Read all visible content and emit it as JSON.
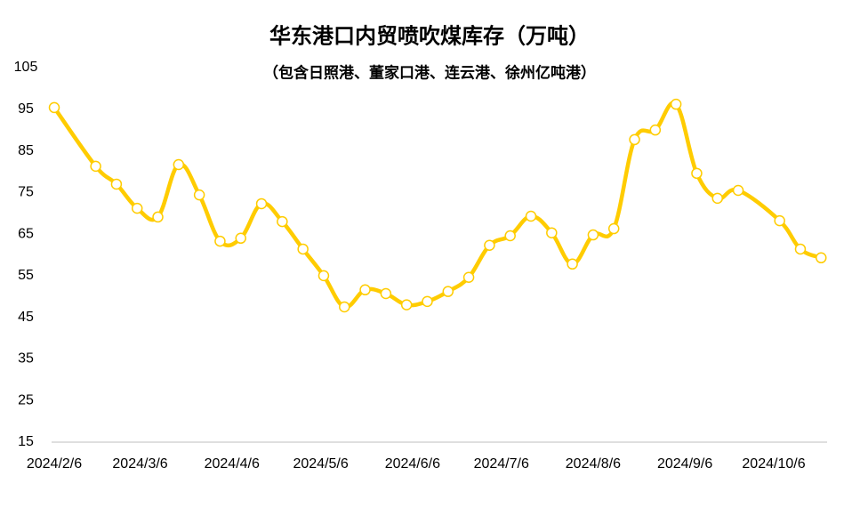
{
  "chart_data": {
    "type": "line",
    "title": "华东港口内贸喷吹煤库存（万吨）",
    "subtitle": "（包含日照港、董家口港、连云港、徐州亿吨港）",
    "x": [
      "2024/2/6",
      "2024/2/20",
      "2024/2/27",
      "2024/3/5",
      "2024/3/12",
      "2024/3/19",
      "2024/3/26",
      "2024/4/2",
      "2024/4/9",
      "2024/4/16",
      "2024/4/23",
      "2024/4/30",
      "2024/5/7",
      "2024/5/14",
      "2024/5/21",
      "2024/5/28",
      "2024/6/4",
      "2024/6/11",
      "2024/6/18",
      "2024/6/25",
      "2024/7/2",
      "2024/7/9",
      "2024/7/16",
      "2024/7/23",
      "2024/7/30",
      "2024/8/6",
      "2024/8/13",
      "2024/8/20",
      "2024/8/27",
      "2024/9/3",
      "2024/9/10",
      "2024/9/17",
      "2024/9/24",
      "2024/10/8",
      "2024/10/15",
      "2024/10/22"
    ],
    "values": [
      95.4,
      81.3,
      77.0,
      71.2,
      69.1,
      81.7,
      74.4,
      63.3,
      64.0,
      72.3,
      68.0,
      61.4,
      55.0,
      47.5,
      51.6,
      50.7,
      48.0,
      48.8,
      51.2,
      54.6,
      62.3,
      64.6,
      69.3,
      65.3,
      57.8,
      64.8,
      66.3,
      87.7,
      90.0,
      96.2,
      79.6,
      73.6,
      75.5,
      68.2,
      61.4,
      59.3
    ],
    "color": "#ffcc00",
    "xticks": [
      "2024/2/6",
      "2024/3/6",
      "2024/4/6",
      "2024/5/6",
      "2024/6/6",
      "2024/7/6",
      "2024/8/6",
      "2024/9/6",
      "2024/10/6"
    ],
    "ylim": [
      15,
      105
    ],
    "yticks": [
      15,
      25,
      35,
      45,
      55,
      65,
      75,
      85,
      95,
      105
    ],
    "grid": false
  }
}
